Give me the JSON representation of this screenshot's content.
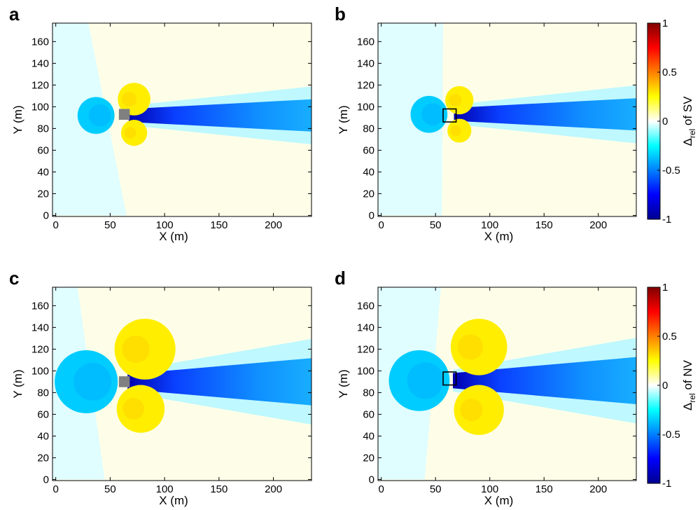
{
  "chart_data": [
    {
      "type": "heatmap",
      "panel_label": "a",
      "xlabel": "X (m)",
      "ylabel": "Y (m)",
      "xlim": [
        -3,
        235
      ],
      "ylim": [
        -1,
        177
      ],
      "xticks": [
        0,
        50,
        100,
        150,
        200
      ],
      "yticks": [
        0,
        20,
        40,
        60,
        80,
        100,
        120,
        140,
        160
      ],
      "obstacle": {
        "style": "filled",
        "color": "#808080",
        "x": [
          58,
          68
        ],
        "y": [
          88,
          98
        ]
      },
      "field": {
        "boundary_x": [
          {
            "y": 0,
            "x": 65
          },
          {
            "y": 177,
            "x": 30
          }
        ],
        "background_left": -0.15,
        "background_right": 0.05,
        "upstream_blob": {
          "center": [
            37,
            92
          ],
          "radius": 17,
          "value": -0.35
        },
        "lobes": [
          {
            "center": [
              72,
              107
            ],
            "radius": 15,
            "value": 0.15
          },
          {
            "center": [
              72,
              76
            ],
            "radius": 12,
            "value": 0.15
          }
        ],
        "outer_wake": {
          "x_start": 67,
          "half_width_start": 9,
          "half_width_end": 27,
          "value": -0.15
        },
        "core_wake": {
          "x_start": 67,
          "half_width_start": 6,
          "half_width_end": 15,
          "value": -0.45
        }
      }
    },
    {
      "type": "heatmap",
      "panel_label": "b",
      "xlabel": "X (m)",
      "ylabel": "Y (m)",
      "xlim": [
        -3,
        235
      ],
      "ylim": [
        -1,
        177
      ],
      "xticks": [
        0,
        50,
        100,
        150,
        200
      ],
      "yticks": [
        0,
        20,
        40,
        60,
        80,
        100,
        120,
        140,
        160
      ],
      "colorbar": {
        "label_pre": "Δ",
        "label_sub": "rel",
        "label_post": " of SV",
        "min": -1,
        "max": 1,
        "ticks": [
          -1,
          -0.5,
          0,
          0.5,
          1
        ]
      },
      "obstacle": {
        "style": "outline",
        "color": "#000000",
        "x": [
          57,
          69
        ],
        "y": [
          86,
          98
        ]
      },
      "field": {
        "boundary_x": [
          {
            "y": 0,
            "x": 56
          },
          {
            "y": 177,
            "x": 57
          }
        ],
        "background_left": -0.15,
        "background_right": 0.05,
        "upstream_blob": {
          "center": [
            44,
            93
          ],
          "radius": 17,
          "value": -0.35
        },
        "lobes": [
          {
            "center": [
              72,
              106
            ],
            "radius": 13,
            "value": 0.15
          },
          {
            "center": [
              72,
              78
            ],
            "radius": 11,
            "value": 0.15
          }
        ],
        "outer_wake": {
          "x_start": 67,
          "half_width_start": 9,
          "half_width_end": 27,
          "value": -0.15
        },
        "core_wake": {
          "x_start": 67,
          "half_width_start": 6,
          "half_width_end": 15,
          "value": -0.45
        }
      }
    },
    {
      "type": "heatmap",
      "panel_label": "c",
      "xlabel": "X (m)",
      "ylabel": "Y (m)",
      "xlim": [
        -3,
        235
      ],
      "ylim": [
        -1,
        177
      ],
      "xticks": [
        0,
        50,
        100,
        150,
        200
      ],
      "yticks": [
        0,
        20,
        40,
        60,
        80,
        100,
        120,
        140,
        160
      ],
      "obstacle": {
        "style": "filled",
        "color": "#808080",
        "x": [
          58,
          68
        ],
        "y": [
          85,
          95
        ]
      },
      "field": {
        "boundary_x": [
          {
            "y": 0,
            "x": 45
          },
          {
            "y": 177,
            "x": 20
          }
        ],
        "background_left": -0.15,
        "background_right": 0.05,
        "upstream_blob": {
          "center": [
            28,
            90
          ],
          "radius": 29,
          "value": -0.35
        },
        "lobes": [
          {
            "center": [
              82,
              120
            ],
            "radius": 28,
            "value": 0.15
          },
          {
            "center": [
              78,
              65
            ],
            "radius": 22,
            "value": 0.15
          }
        ],
        "outer_wake": {
          "x_start": 66,
          "half_width_start": 10,
          "half_width_end": 40,
          "value": -0.15
        },
        "core_wake": {
          "x_start": 66,
          "half_width_start": 7,
          "half_width_end": 22,
          "value": -0.5
        }
      }
    },
    {
      "type": "heatmap",
      "panel_label": "d",
      "xlabel": "X (m)",
      "ylabel": "Y (m)",
      "xlim": [
        -3,
        235
      ],
      "ylim": [
        -1,
        177
      ],
      "xticks": [
        0,
        50,
        100,
        150,
        200
      ],
      "yticks": [
        0,
        20,
        40,
        60,
        80,
        100,
        120,
        140,
        160
      ],
      "colorbar": {
        "label_pre": "Δ",
        "label_sub": "rel",
        "label_post": " of NV",
        "min": -1,
        "max": 1,
        "ticks": [
          -1,
          -0.5,
          0,
          0.5,
          1
        ]
      },
      "obstacle": {
        "style": "outline",
        "color": "#000000",
        "x": [
          57,
          69
        ],
        "y": [
          87,
          99
        ]
      },
      "field": {
        "boundary_x": [
          {
            "y": 0,
            "x": 40
          },
          {
            "y": 177,
            "x": 55
          }
        ],
        "background_left": -0.15,
        "background_right": 0.05,
        "upstream_blob": {
          "center": [
            35,
            91
          ],
          "radius": 28,
          "value": -0.35
        },
        "lobes": [
          {
            "center": [
              90,
              122
            ],
            "radius": 26,
            "value": 0.15
          },
          {
            "center": [
              90,
              64
            ],
            "radius": 23,
            "value": 0.15
          }
        ],
        "outer_wake": {
          "x_start": 66,
          "half_width_start": 10,
          "half_width_end": 40,
          "value": -0.15
        },
        "core_wake": {
          "x_start": 66,
          "half_width_start": 7,
          "half_width_end": 22,
          "value": -0.5
        }
      }
    }
  ]
}
